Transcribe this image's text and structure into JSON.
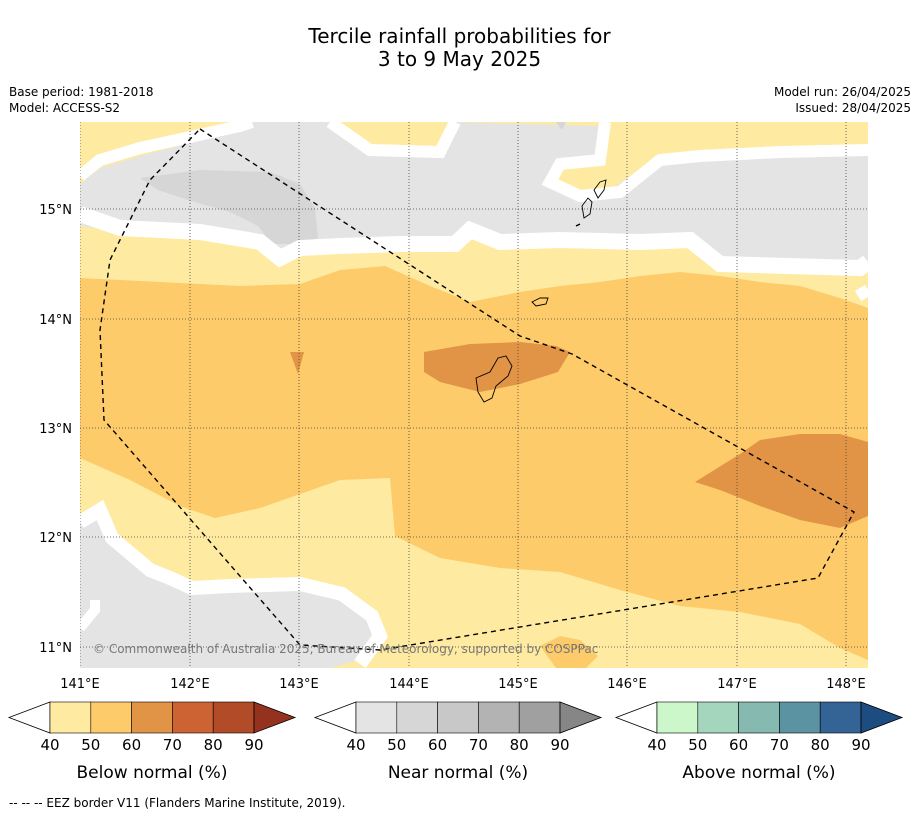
{
  "title": {
    "line1": "Tercile rainfall probabilities for",
    "line2": "3 to 9 May 2025"
  },
  "meta": {
    "base_period": "Base period: 1981-2018",
    "model": "Model: ACCESS-S2",
    "model_run": "Model run: 26/04/2025",
    "issued": "Issued: 28/04/2025"
  },
  "map": {
    "lon_labels": [
      "141°E",
      "142°E",
      "143°E",
      "144°E",
      "145°E",
      "146°E",
      "147°E",
      "148°E"
    ],
    "lat_labels": [
      "15°N",
      "14°N",
      "13°N",
      "12°N",
      "11°N"
    ],
    "copyright": "© Commonwealth of Australia 2025, Bureau of Meteorology, supported by COSPPac",
    "colors": {
      "near_40": "#e4e4e4",
      "near_50": "#d6d6d6",
      "below_40": "#ffeaa1",
      "below_50": "#fdcb6a",
      "below_60": "#e19445"
    }
  },
  "colorbars": [
    {
      "name": "below",
      "label": "Below normal (%)",
      "ticks": [
        "40",
        "50",
        "60",
        "70",
        "80",
        "90"
      ],
      "colors": [
        "#ffeaa1",
        "#fdcb6a",
        "#e19445",
        "#cd6332",
        "#b24b27",
        "#94321f"
      ]
    },
    {
      "name": "near",
      "label": "Near normal (%)",
      "ticks": [
        "40",
        "50",
        "60",
        "70",
        "80",
        "90"
      ],
      "colors": [
        "#e4e4e4",
        "#d6d6d6",
        "#c8c8c8",
        "#b3b3b3",
        "#a0a0a0",
        "#868686"
      ]
    },
    {
      "name": "above",
      "label": "Above normal (%)",
      "ticks": [
        "40",
        "50",
        "60",
        "70",
        "80",
        "90"
      ],
      "colors": [
        "#cbf7cb",
        "#a4d6be",
        "#86b9b0",
        "#5c93a3",
        "#346496",
        "#1d4c80"
      ]
    }
  ],
  "footer": "--  --  -- EEZ border V11 (Flanders Marine Institute, 2019)."
}
